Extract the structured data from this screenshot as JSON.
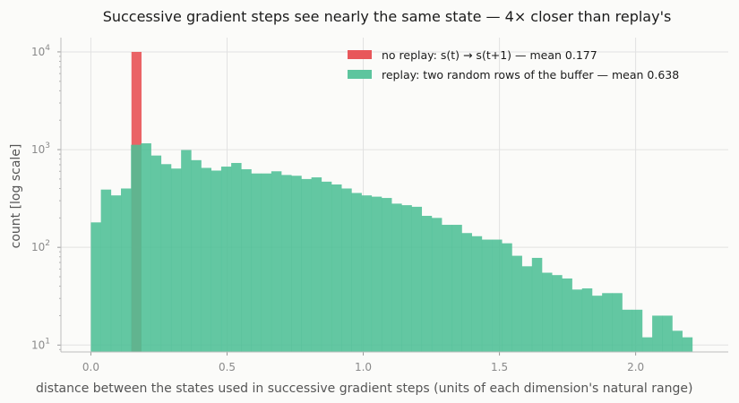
{
  "chart_data": {
    "type": "histogram",
    "title": "Successive gradient steps see nearly the same state — 4× closer than replay's",
    "xlabel": "distance between the states used in successive gradient steps (units of each dimension's natural range)",
    "ylabel": "count  [log scale]",
    "yscale": "log",
    "xlim": [
      -0.11,
      2.34
    ],
    "ylim": [
      8.5,
      14000
    ],
    "xticks": [
      "0.0",
      "0.5",
      "1.0",
      "1.5",
      "2.0"
    ],
    "yticks": [
      {
        "base": "10",
        "exp": "1"
      },
      {
        "base": "10",
        "exp": "2"
      },
      {
        "base": "10",
        "exp": "3"
      },
      {
        "base": "10",
        "exp": "4"
      }
    ],
    "grid": true,
    "legend_position": "top-right",
    "bin_width": 0.0368,
    "x_start": 0.0,
    "series": [
      {
        "name": "no replay: s(t) → s(t+1)  —  mean 0.177",
        "color": "#e8575a",
        "bins": [
          {
            "x0": 0.149,
            "x1": 0.186,
            "count": 10000
          }
        ]
      },
      {
        "name": "replay: two random rows of the buffer  —  mean 0.638",
        "color": "#4dbf95",
        "counts": [
          180,
          390,
          340,
          400,
          1120,
          1160,
          870,
          710,
          640,
          990,
          780,
          650,
          610,
          670,
          730,
          630,
          570,
          570,
          600,
          550,
          540,
          500,
          520,
          470,
          440,
          400,
          360,
          340,
          330,
          320,
          280,
          270,
          260,
          210,
          200,
          170,
          170,
          140,
          130,
          120,
          120,
          110,
          82,
          64,
          78,
          55,
          52,
          48,
          37,
          38,
          32,
          34,
          34,
          23,
          23,
          12,
          20,
          20,
          14,
          12
        ]
      }
    ]
  }
}
